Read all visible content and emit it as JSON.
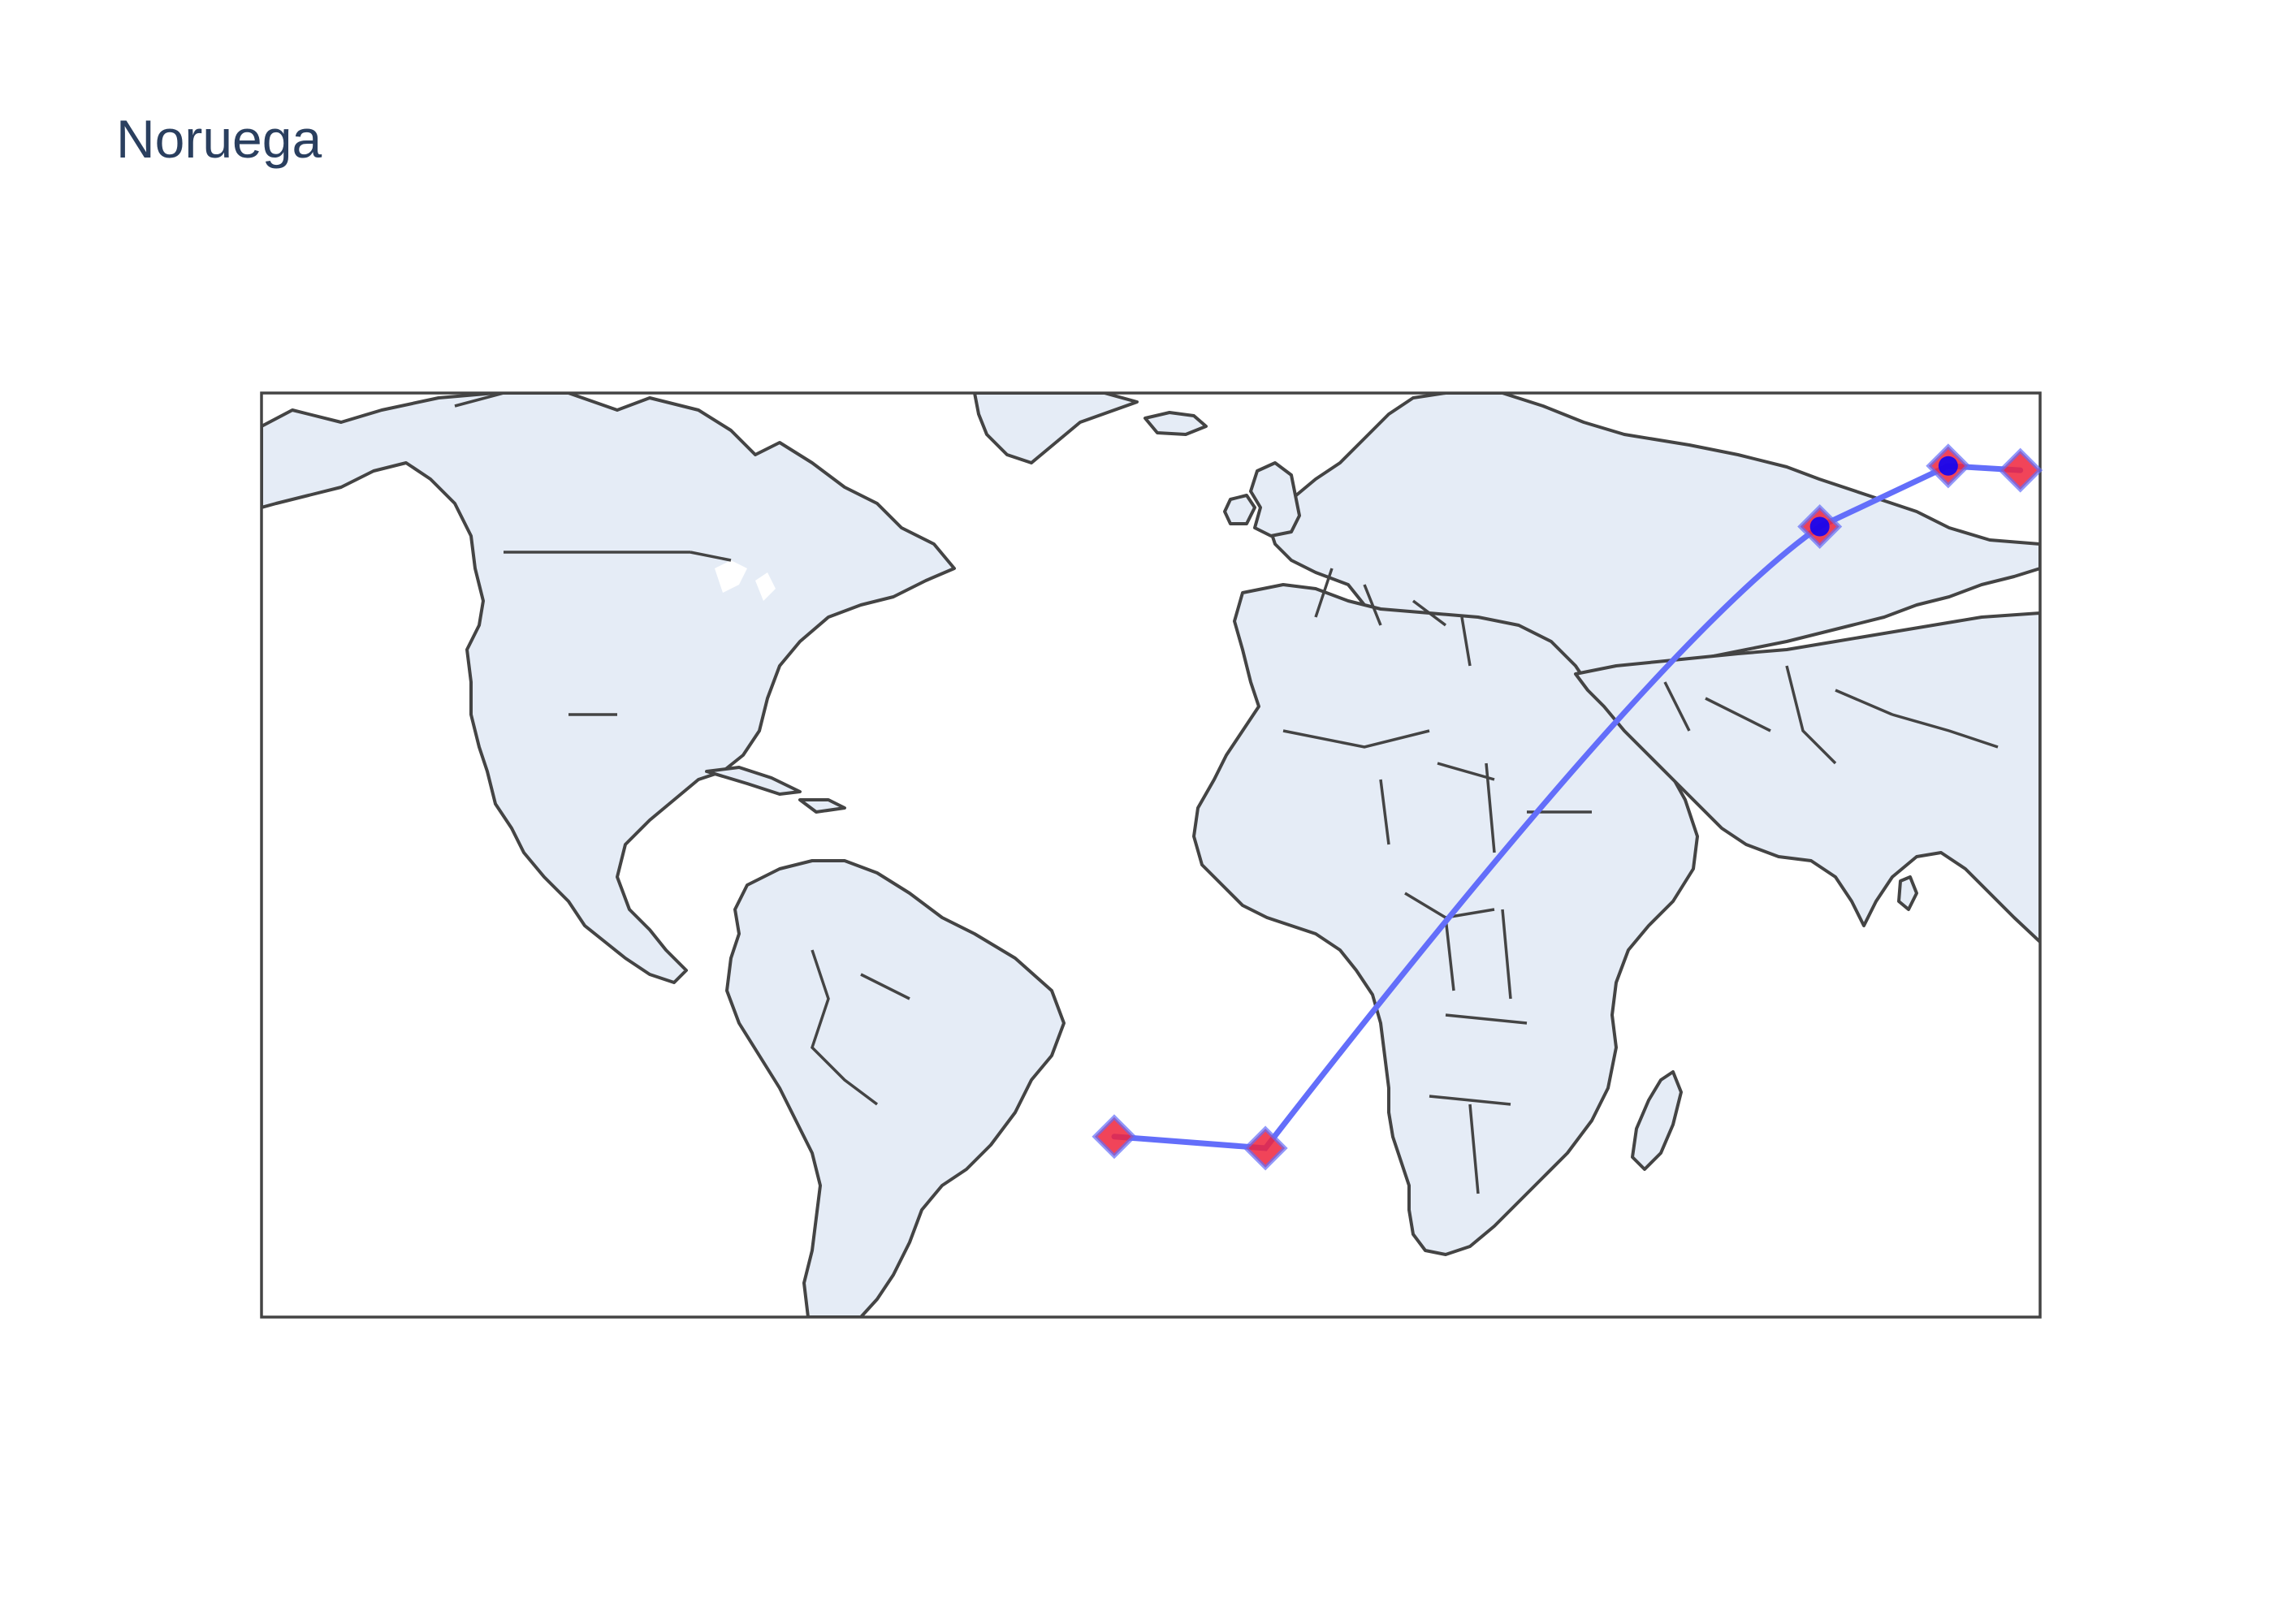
{
  "title": "Noruega",
  "map": {
    "projection": "equirectangular",
    "bounds": {
      "lon_min": -160,
      "lon_max": 20,
      "lat_min": -58,
      "lat_max": 70
    },
    "land_color": "#e5ecf6",
    "border_color": "#444444",
    "route_color": "#636efa",
    "stop_marker_color": "#ef233c",
    "point_marker_color": "#0000ff"
  },
  "route": {
    "stops": [
      {
        "lon": -73.7,
        "lat": -33.0,
        "marker": "diamond"
      },
      {
        "lon": -58.4,
        "lat": -34.6,
        "marker": "diamond"
      },
      {
        "lon": -2.3,
        "lat": 51.5,
        "marker": "circle"
      },
      {
        "lon": 10.7,
        "lat": 59.9,
        "marker": "circle"
      },
      {
        "lon": 18.0,
        "lat": 59.3,
        "marker": "diamond"
      }
    ]
  }
}
